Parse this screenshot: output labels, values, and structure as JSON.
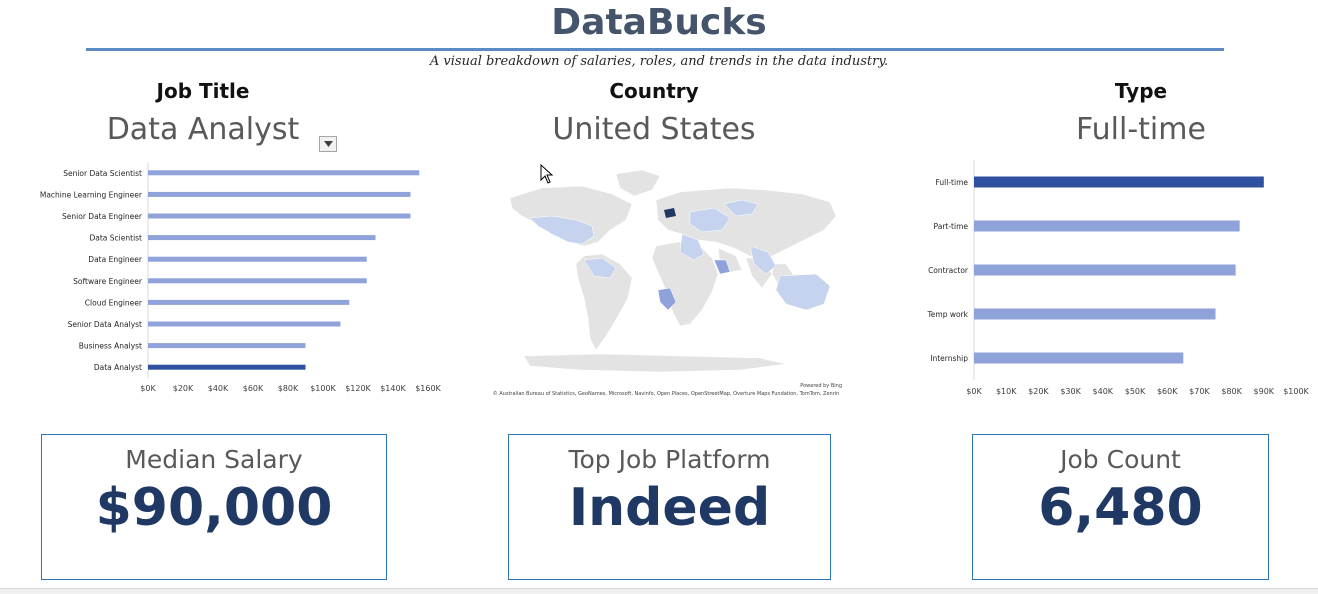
{
  "header": {
    "title": "DataBucks",
    "subtitle": "A visual breakdown of salaries, roles, and trends in the data industry."
  },
  "filters": {
    "job_title": {
      "label": "Job Title",
      "value": "Data Analyst"
    },
    "country": {
      "label": "Country",
      "value": "United States"
    },
    "type": {
      "label": "Type",
      "value": "Full-time"
    }
  },
  "colors": {
    "bar": "#8fa2d9",
    "bar_highlight": "#2f4f9f",
    "kpi_value": "#1f3864",
    "accent_rule": "#5b8ac6",
    "map_land": "#e3e3e3",
    "map_highlight": "#c5d3ee",
    "map_selected": "#1f3864"
  },
  "job_title_chart": {
    "type": "bar",
    "orientation": "horizontal",
    "categories": [
      "Senior Data Scientist",
      "Machine Learning Engineer",
      "Senior Data Engineer",
      "Data Scientist",
      "Data Engineer",
      "Software Engineer",
      "Cloud Engineer",
      "Senior Data Analyst",
      "Business Analyst",
      "Data Analyst"
    ],
    "values": [
      155000,
      150000,
      150000,
      130000,
      125000,
      125000,
      115000,
      110000,
      90000,
      90000
    ],
    "highlight": "Data Analyst",
    "ticks": [
      0,
      20000,
      40000,
      60000,
      80000,
      100000,
      120000,
      140000,
      160000
    ],
    "tick_labels": [
      "$0K",
      "$20K",
      "$40K",
      "$60K",
      "$80K",
      "$100K",
      "$120K",
      "$140K",
      "$160K"
    ],
    "xlim": [
      0,
      160000
    ]
  },
  "type_chart": {
    "type": "bar",
    "orientation": "horizontal",
    "categories": [
      "Full-time",
      "Part-time",
      "Contractor",
      "Temp work",
      "Internship"
    ],
    "values": [
      90000,
      82500,
      81250,
      75000,
      65000
    ],
    "highlight": "Full-time",
    "ticks": [
      0,
      10000,
      20000,
      30000,
      40000,
      50000,
      60000,
      70000,
      80000,
      90000,
      100000
    ],
    "tick_labels": [
      "$0K",
      "$10K",
      "$20K",
      "$30K",
      "$40K",
      "$50K",
      "$60K",
      "$70K",
      "$80K",
      "$90K",
      "$100K"
    ],
    "xlim": [
      0,
      100000
    ]
  },
  "map": {
    "powered_by": "Powered by Bing",
    "credit": "© Australian Bureau of Statistics, GeoNames, Microsoft, Navinfo, Open Places, OpenStreetMap, Overture Maps Fundation, TomTom, Zenrin"
  },
  "kpis": {
    "median_salary": {
      "label": "Median Salary",
      "value": "$90,000"
    },
    "top_platform": {
      "label": "Top Job Platform",
      "value": "Indeed"
    },
    "job_count": {
      "label": "Job Count",
      "value": "6,480"
    }
  }
}
